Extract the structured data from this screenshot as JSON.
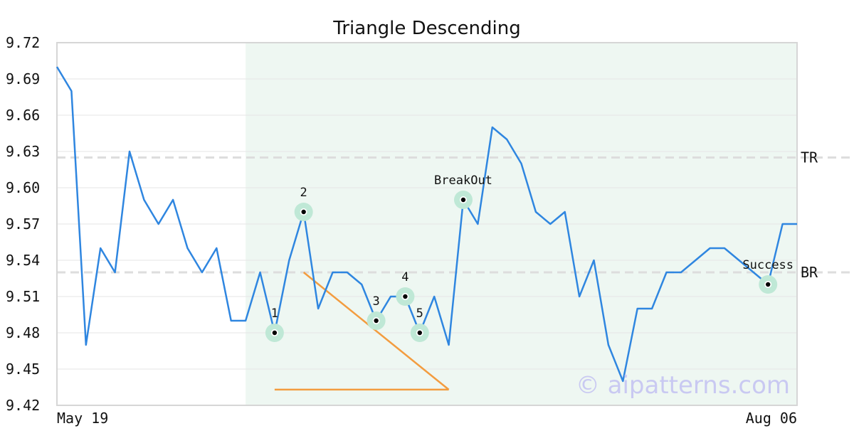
{
  "chart_data": {
    "type": "line",
    "title": "Triangle Descending",
    "ylim": [
      9.42,
      9.72
    ],
    "yticks": [
      9.42,
      9.45,
      9.48,
      9.51,
      9.54,
      9.57,
      9.6,
      9.63,
      9.66,
      9.69,
      9.72
    ],
    "ytick_labels": [
      "9.42",
      "9.45",
      "9.48",
      "9.51",
      "9.54",
      "9.57",
      "9.60",
      "9.63",
      "9.66",
      "9.69",
      "9.72"
    ],
    "x_start_label": "May 19",
    "x_end_label": "Aug 06",
    "grid": true,
    "series": [
      {
        "values": [
          9.7,
          9.68,
          9.47,
          9.55,
          9.53,
          9.63,
          9.59,
          9.57,
          9.59,
          9.55,
          9.53,
          9.55,
          9.49,
          9.49,
          9.53,
          9.48,
          9.54,
          9.58,
          9.5,
          9.53,
          9.53,
          9.52,
          9.49,
          9.51,
          9.51,
          9.48,
          9.51,
          9.47,
          9.59,
          9.57,
          9.65,
          9.64,
          9.62,
          9.58,
          9.57,
          9.58,
          9.51,
          9.54,
          9.47,
          9.44,
          9.5,
          9.5,
          9.53,
          9.53,
          9.54,
          9.55,
          9.55,
          9.54,
          9.53,
          9.52,
          9.57,
          9.57
        ],
        "color": "#2f86e0"
      }
    ],
    "highlight_region": {
      "start_index": 13,
      "end_index": 51
    },
    "levels": [
      {
        "label": "TR",
        "value": 9.625
      },
      {
        "label": "BR",
        "value": 9.53
      }
    ],
    "trendlines": [
      {
        "from": [
          17,
          9.53
        ],
        "to": [
          27,
          9.433
        ]
      },
      {
        "from": [
          15,
          9.433
        ],
        "to": [
          27,
          9.433
        ]
      }
    ],
    "markers": [
      {
        "label": "1",
        "index": 15,
        "value": 9.48
      },
      {
        "label": "2",
        "index": 17,
        "value": 9.58
      },
      {
        "label": "3",
        "index": 22,
        "value": 9.49
      },
      {
        "label": "4",
        "index": 24,
        "value": 9.51
      },
      {
        "label": "5",
        "index": 25,
        "value": 9.48
      },
      {
        "label": "BreakOut",
        "index": 28,
        "value": 9.59
      },
      {
        "label": "Success",
        "index": 49,
        "value": 9.52
      }
    ],
    "watermark": "© aipatterns.com",
    "colors": {
      "line": "#2f86e0",
      "trendline": "#f39c3f",
      "region": "#eef7f2",
      "marker_halo": "#bfe8d6",
      "level": "#dddddd",
      "watermark": "#c9c9f2"
    }
  }
}
